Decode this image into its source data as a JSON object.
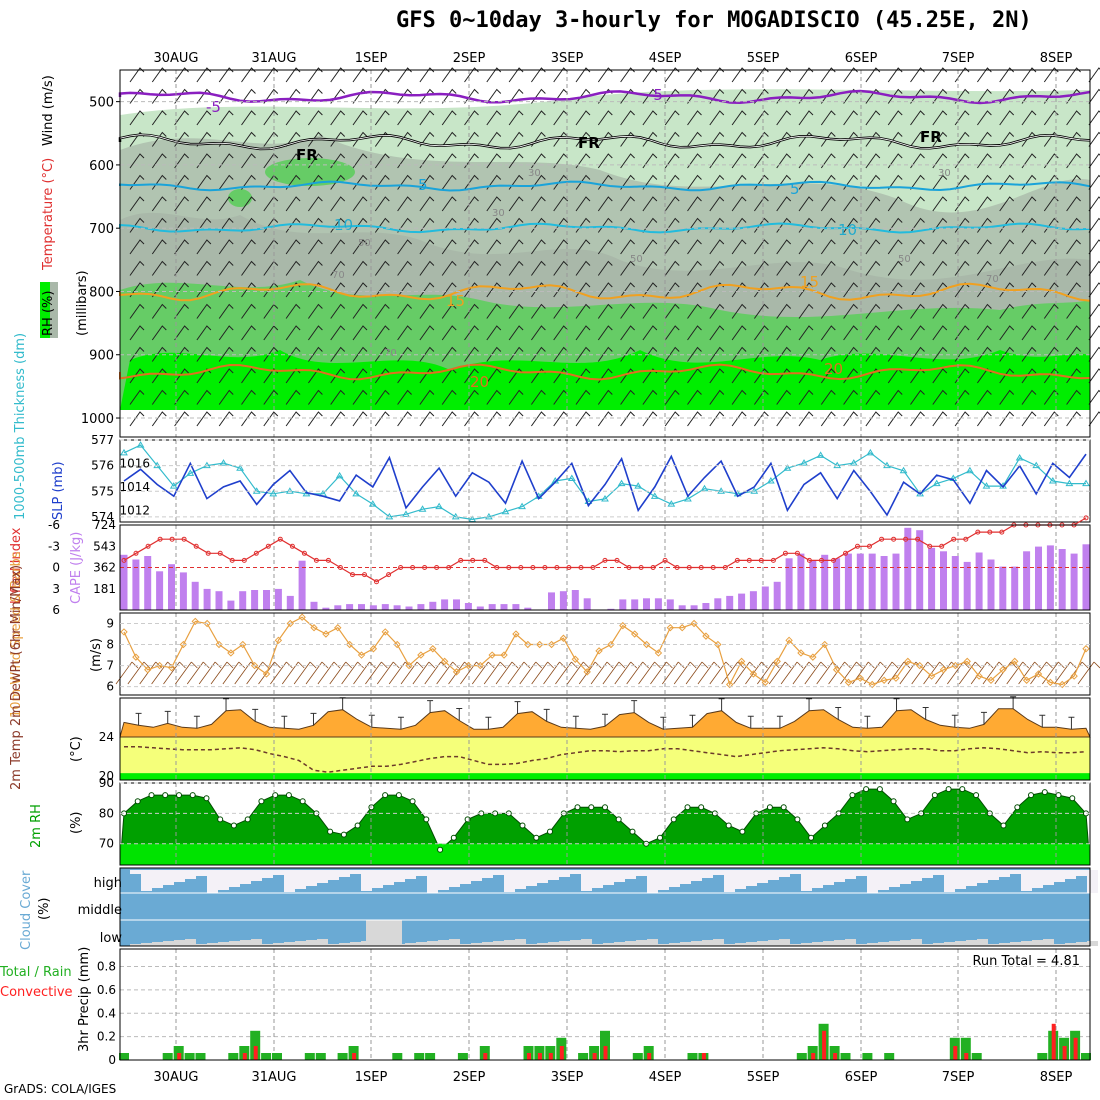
{
  "title": "GFS 0~10day 3-hourly for MOGADISCIO (45.25E, 2N)",
  "footer": "GrADS: COLA/IGES",
  "dates": [
    "30AUG",
    "31AUG",
    "1SEP",
    "2SEP",
    "3SEP",
    "4SEP",
    "5SEP",
    "6SEP",
    "7SEP",
    "8SEP"
  ],
  "colors": {
    "rh_dark": "#00ee00",
    "rh_mid": "#66cc66",
    "rh_light": "#c8e6c8",
    "rh_grey": "#a9b8a9",
    "temp_purple": "#8a1fc0",
    "freezing": "#000000",
    "temp_cyan": "#1aa3d9",
    "temp_orange": "#f0a020",
    "slp": "#1f3fcc",
    "thickness": "#33bbcc",
    "cape": "#c080ee",
    "lifted": "#e03030",
    "wind10": "#e8a040",
    "temp2m": "#ffaa33",
    "dew2m": "#f5ff7a",
    "rh2m_dark": "#00a000",
    "rh2m_light": "#00ee00",
    "cloud": "#6aaad4",
    "rain_total": "#22b022",
    "rain_conv": "#ff2020"
  },
  "panels": {
    "upper": {
      "ylabel_rh": "RH (%)",
      "ylabel_temp": "Temperature (°C)",
      "ylabel_wind": "Wind (m/s)",
      "ylabel_p": "(millibars)",
      "pressure_ticks": [
        "500",
        "600",
        "700",
        "800",
        "900",
        "1000"
      ],
      "contour_labels": [
        "-5",
        "-5",
        "FR",
        "FR",
        "FR",
        "5",
        "5",
        "10",
        "10",
        "15",
        "15",
        "20",
        "20",
        "30",
        "30",
        "30",
        "50",
        "50",
        "50",
        "70",
        "70",
        "70"
      ]
    },
    "slp": {
      "ylabel_thick": "1000-500mb Thickness (dm)",
      "ylabel_slp": "SLP (mb)",
      "left_ticks": [
        "577",
        "576",
        "575",
        "574"
      ],
      "right_ticks": [
        "1016",
        "1014",
        "1012"
      ]
    },
    "cape": {
      "ylabel_li": "Lifted Index",
      "ylabel_cape": "CAPE (J/kg)",
      "left_ticks": [
        "-6",
        "-3",
        "0",
        "3",
        "6"
      ],
      "right_ticks": [
        "724",
        "543",
        "362",
        "181"
      ]
    },
    "wind10": {
      "ylabel": "10m Wind Speed & Barbs",
      "unit": "(m/s)",
      "ticks": [
        "9",
        "8",
        "7",
        "6"
      ]
    },
    "temp2m": {
      "ylabel": "2m Temp 2m DewPt (6hr Min/Max)",
      "unit": "(°C)",
      "ticks": [
        "24",
        "20"
      ]
    },
    "rh2m": {
      "ylabel": "2m RH",
      "unit": "(%)",
      "ticks": [
        "90",
        "80",
        "70"
      ]
    },
    "cloud": {
      "ylabel": "Cloud Cover",
      "unit": "(%)",
      "levels": [
        "high",
        "middle",
        "low"
      ]
    },
    "precip": {
      "ylabel_total": "Total / Rain",
      "ylabel_conv": "Convective",
      "ylabel": "3hr Precip (mm)",
      "ticks": [
        "0.8",
        "0.6",
        "0.4",
        "0.2",
        "0"
      ],
      "run_total": "Run Total = 4.81"
    }
  },
  "chart_data": [
    {
      "type": "line",
      "title": "1000-500mb Thickness (dm) / SLP (mb)",
      "series": [
        {
          "name": "SLP (mb)",
          "values": [
            1014.5,
            1015.5,
            1014.2,
            1013.2,
            1016.0,
            1013.0,
            1014.0,
            1014.5,
            1012.5,
            1014.2,
            1015.4,
            1013.5,
            1013.2,
            1012.8,
            1015.0,
            1014.0,
            1016.5,
            1012.2,
            1014.0,
            1015.6,
            1013.2,
            1015.2,
            1014.4,
            1012.6,
            1016.2,
            1013.0,
            1014.4,
            1016.0,
            1012.4,
            1014.2,
            1016.4,
            1012.0,
            1014.0,
            1016.6,
            1013.2,
            1014.8,
            1016.2,
            1013.2,
            1014.0,
            1016.0,
            1012.0,
            1014.2,
            1015.2,
            1013.0,
            1015.4,
            1013.6,
            1011.6,
            1014.4,
            1013.4,
            1015.0,
            1014.6,
            1012.6,
            1015.4,
            1014.0,
            1015.8,
            1013.4,
            1016.0,
            1014.8,
            1016.8
          ]
        },
        {
          "name": "1000-500mb Thickness (dm)",
          "values": [
            576.5,
            576.8,
            576.0,
            575.2,
            575.7,
            576.0,
            576.1,
            575.9,
            575.0,
            574.9,
            575.0,
            574.9,
            574.9,
            575.6,
            574.9,
            574.5,
            574.0,
            574.1,
            574.3,
            574.4,
            574.0,
            573.9,
            574.0,
            574.2,
            574.4,
            574.8,
            575.4,
            575.5,
            574.6,
            574.7,
            575.3,
            575.2,
            574.8,
            574.5,
            574.7,
            575.1,
            575.0,
            574.9,
            575.0,
            575.4,
            575.9,
            576.1,
            576.4,
            576.0,
            576.1,
            576.5,
            576.0,
            575.8,
            574.9,
            575.3,
            575.5,
            575.8,
            575.2,
            575.2,
            576.3,
            576.0,
            575.4,
            575.3,
            575.3
          ]
        }
      ],
      "ylim_left": [
        573.8,
        577
      ],
      "ylim_right": [
        1011,
        1018
      ]
    },
    {
      "type": "bar",
      "title": "CAPE (J/kg) / Lifted Index",
      "series": [
        {
          "name": "CAPE (J/kg)",
          "values": [
            470,
            430,
            460,
            330,
            390,
            320,
            240,
            180,
            160,
            80,
            160,
            170,
            170,
            180,
            120,
            420,
            70,
            20,
            40,
            50,
            50,
            40,
            50,
            40,
            30,
            50,
            70,
            90,
            90,
            60,
            30,
            50,
            50,
            50,
            20,
            0,
            150,
            160,
            170,
            100,
            0,
            10,
            90,
            90,
            100,
            100,
            90,
            40,
            40,
            60,
            100,
            120,
            140,
            160,
            200,
            240,
            440,
            480,
            420,
            470,
            440,
            480,
            480,
            480,
            460,
            480,
            700,
            680,
            530,
            500,
            460,
            410,
            490,
            430,
            370,
            370,
            500,
            540,
            550,
            520,
            480,
            560
          ]
        },
        {
          "name": "Lifted Index",
          "values": [
            -1,
            -2,
            -3,
            -4,
            -4,
            -4,
            -3,
            -2,
            -2,
            -1,
            -1,
            -2,
            -3,
            -4,
            -3,
            -2,
            -1,
            -1,
            0,
            1,
            1,
            2,
            1,
            0,
            0,
            0,
            0,
            0,
            -1,
            -1,
            -1,
            0,
            0,
            0,
            0,
            0,
            0,
            0,
            0,
            0,
            -1,
            -1,
            0,
            0,
            0,
            -1,
            0,
            0,
            0,
            0,
            0,
            -1,
            -1,
            -1,
            -1,
            -2,
            -2,
            -1,
            -1,
            -1,
            -2,
            -3,
            -3,
            -4,
            -4,
            -4,
            -4,
            -3,
            -3,
            -4,
            -4,
            -5,
            -5,
            -5,
            -6,
            -6,
            -6,
            -6,
            -6,
            -6,
            -7
          ]
        }
      ],
      "ylim_cape": [
        0,
        724
      ],
      "ylim_li": [
        6,
        -6
      ]
    },
    {
      "type": "line",
      "title": "10m Wind Speed & Barbs",
      "series": [
        {
          "name": "10m Wind Speed",
          "values": [
            8.6,
            7.4,
            6.8,
            7.0,
            6.9,
            8.0,
            9.1,
            9.0,
            8.0,
            7.6,
            8.0,
            7.0,
            6.6,
            8.2,
            9.0,
            9.3,
            8.8,
            8.5,
            8.8,
            8.0,
            7.5,
            7.8,
            8.6,
            8.0,
            7.0,
            7.5,
            7.8,
            7.2,
            6.7,
            7.0,
            7.0,
            7.5,
            7.5,
            8.5,
            8.0,
            8.0,
            8.0,
            8.3,
            7.3,
            6.7,
            7.7,
            8.0,
            8.9,
            8.5,
            8.0,
            7.6,
            8.8,
            8.8,
            9.0,
            8.4,
            8.0,
            6.1,
            7.2,
            6.6,
            6.2,
            7.2,
            8.2,
            7.6,
            7.4,
            8.0,
            6.8,
            6.2,
            6.4,
            6.1,
            6.3,
            6.4,
            7.2,
            7.0,
            6.5,
            6.8,
            7.0,
            7.2,
            6.5,
            6.3,
            6.8,
            7.2,
            6.3,
            6.6,
            6.2,
            6.1,
            6.5,
            7.8
          ]
        }
      ],
      "ylim": [
        5.6,
        9.5
      ]
    },
    {
      "type": "area",
      "title": "2m Temp 2m DewPt (6hr Min/Max)",
      "series": [
        {
          "name": "2m Temp",
          "values": [
            25.5,
            25.2,
            25.0,
            25.4,
            25.0,
            24.9,
            25.3,
            26.7,
            26.8,
            25.6,
            25.0,
            24.9,
            24.8,
            25.2,
            26.6,
            26.8,
            25.8,
            25.0,
            24.9,
            24.8,
            25.2,
            26.5,
            26.7,
            25.7,
            24.8,
            24.8,
            25.0,
            26.4,
            26.6,
            25.6,
            25.0,
            24.9,
            24.8,
            25.1,
            26.3,
            26.5,
            25.5,
            24.8,
            24.9,
            25.0,
            26.4,
            26.7,
            25.5,
            24.9,
            24.9,
            24.9,
            25.6,
            26.7,
            26.8,
            25.8,
            25.0,
            24.9,
            25.0,
            26.7,
            26.8,
            25.8,
            25.2,
            25.0,
            24.9,
            25.3,
            26.9,
            26.9,
            25.8,
            25.0,
            25.0,
            24.8,
            24.9
          ]
        },
        {
          "name": "2m DewPt",
          "values": [
            23.0,
            23.0,
            22.9,
            22.8,
            22.7,
            22.7,
            22.7,
            22.8,
            22.9,
            22.7,
            22.3,
            22.0,
            21.6,
            20.6,
            20.4,
            20.6,
            20.8,
            21.0,
            21.0,
            21.2,
            21.5,
            21.8,
            22.0,
            22.0,
            21.6,
            21.2,
            21.2,
            21.3,
            21.6,
            21.8,
            22.2,
            22.4,
            22.6,
            22.6,
            22.5,
            22.6,
            22.6,
            22.8,
            22.8,
            22.6,
            22.4,
            22.2,
            22.0,
            22.2,
            22.4,
            22.6,
            22.7,
            22.8,
            22.9,
            22.8,
            22.6,
            22.5,
            22.6,
            22.7,
            22.8,
            22.8,
            22.6,
            22.6,
            22.8,
            22.9,
            22.8,
            22.6,
            22.4,
            22.5,
            22.4,
            22.4,
            22.5
          ]
        }
      ],
      "ylim": [
        19.6,
        28.0
      ]
    },
    {
      "type": "area",
      "title": "2m RH (%)",
      "series": [
        {
          "name": "2m RH",
          "values": [
            80,
            84,
            86,
            86,
            86,
            86,
            85,
            78,
            76,
            78,
            84,
            86,
            86,
            84,
            80,
            74,
            73,
            76,
            82,
            86,
            86,
            84,
            78,
            68,
            72,
            78,
            80,
            80,
            80,
            76,
            72,
            74,
            80,
            82,
            82,
            82,
            78,
            74,
            70,
            72,
            78,
            82,
            82,
            80,
            76,
            74,
            80,
            82,
            82,
            78,
            72,
            76,
            80,
            86,
            88,
            88,
            84,
            78,
            80,
            86,
            88,
            88,
            86,
            80,
            76,
            82,
            86,
            87,
            86,
            85,
            80
          ]
        }
      ],
      "ylim": [
        63,
        90
      ]
    },
    {
      "type": "bar",
      "title": "3hr Precip (mm)",
      "series": [
        {
          "name": "Total / Rain",
          "values": [
            0.06,
            0,
            0,
            0,
            0.06,
            0.12,
            0.06,
            0.06,
            0,
            0,
            0.06,
            0.12,
            0.25,
            0.06,
            0.06,
            0,
            0,
            0.06,
            0.06,
            0,
            0.06,
            0.12,
            0,
            0,
            0,
            0.06,
            0,
            0.06,
            0.06,
            0,
            0,
            0.06,
            0,
            0.12,
            0,
            0,
            0,
            0.12,
            0.12,
            0.12,
            0.19,
            0,
            0.06,
            0.12,
            0.25,
            0,
            0,
            0.06,
            0.12,
            0,
            0,
            0,
            0.06,
            0.06,
            0,
            0,
            0,
            0,
            0,
            0,
            0,
            0,
            0.06,
            0.12,
            0.31,
            0.12,
            0.06,
            0,
            0.06,
            0,
            0.06,
            0,
            0,
            0,
            0,
            0,
            0.19,
            0.19,
            0.06,
            0,
            0,
            0,
            0,
            0,
            0.06,
            0.25,
            0.19,
            0.25,
            0.06
          ]
        },
        {
          "name": "Convective",
          "values": [
            0,
            0,
            0,
            0,
            0,
            0.06,
            0,
            0,
            0,
            0,
            0,
            0.06,
            0.12,
            0,
            0,
            0,
            0,
            0,
            0,
            0,
            0,
            0.06,
            0,
            0,
            0,
            0,
            0,
            0,
            0,
            0,
            0,
            0,
            0,
            0.06,
            0,
            0,
            0,
            0.06,
            0.06,
            0.06,
            0.12,
            0,
            0,
            0.06,
            0.12,
            0,
            0,
            0,
            0.06,
            0,
            0,
            0,
            0,
            0.06,
            0,
            0,
            0,
            0,
            0,
            0,
            0,
            0,
            0,
            0.06,
            0.25,
            0.06,
            0,
            0,
            0,
            0,
            0,
            0,
            0,
            0,
            0,
            0,
            0.12,
            0.06,
            0,
            0,
            0,
            0,
            0,
            0,
            0,
            0.31,
            0.12,
            0.19,
            0
          ]
        }
      ],
      "ylim": [
        0,
        0.95
      ]
    }
  ]
}
